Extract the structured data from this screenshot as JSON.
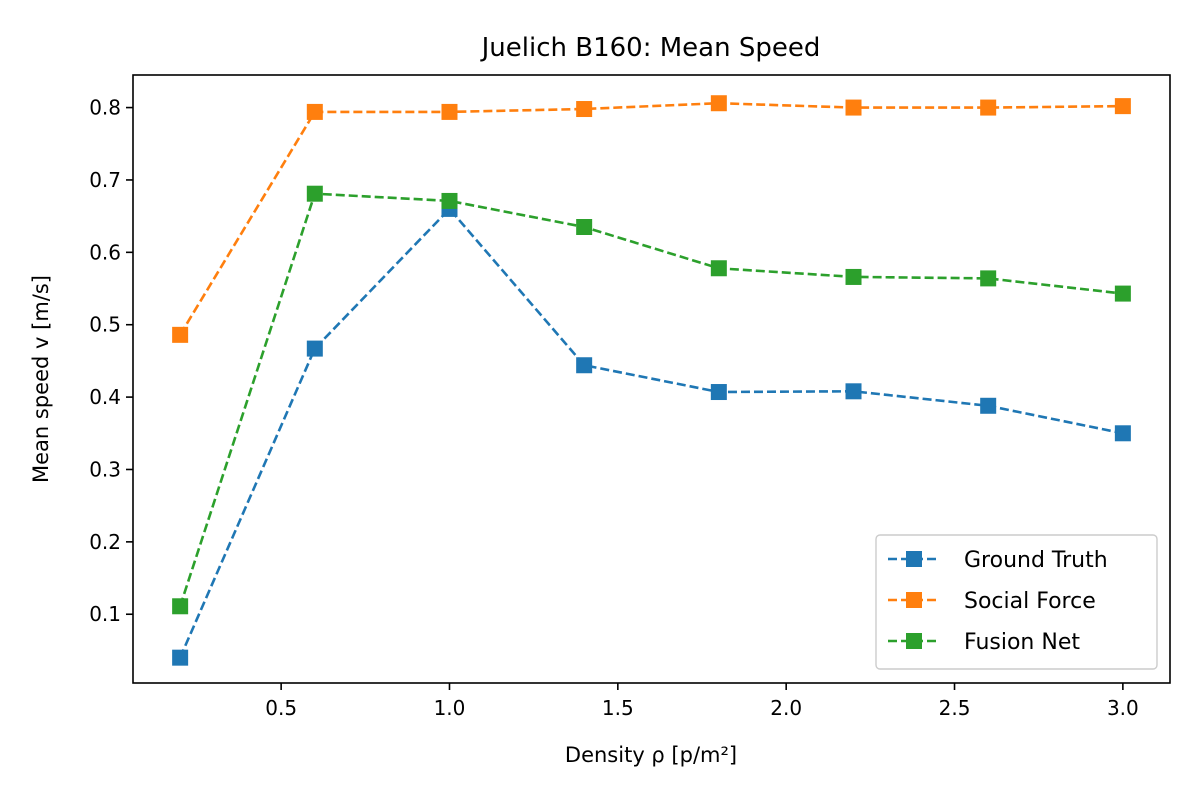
{
  "chart_data": {
    "type": "line",
    "title": "Juelich B160: Mean Speed",
    "xlabel": "Density ρ [p/m²]",
    "ylabel": "Mean speed v [m/s]",
    "x": [
      0.2,
      0.6,
      1.0,
      1.4,
      1.8,
      2.2,
      2.6,
      3.0
    ],
    "xlim": [
      0.06,
      3.14
    ],
    "ylim": [
      0.005,
      0.845
    ],
    "xticks": [
      0.5,
      1.0,
      1.5,
      2.0,
      2.5,
      3.0
    ],
    "xtick_labels": [
      "0.5",
      "1.0",
      "1.5",
      "2.0",
      "2.5",
      "3.0"
    ],
    "yticks": [
      0.1,
      0.2,
      0.3,
      0.4,
      0.5,
      0.6,
      0.7,
      0.8
    ],
    "ytick_labels": [
      "0.1",
      "0.2",
      "0.3",
      "0.4",
      "0.5",
      "0.6",
      "0.7",
      "0.8"
    ],
    "grid": false,
    "legend_position": "lower-right",
    "series": [
      {
        "name": "Ground Truth",
        "color": "#1f77b4",
        "marker": "square",
        "linestyle": "dashed",
        "values": [
          0.04,
          0.467,
          0.66,
          0.444,
          0.407,
          0.408,
          0.388,
          0.35
        ]
      },
      {
        "name": "Social Force",
        "color": "#ff7f0e",
        "marker": "square",
        "linestyle": "dashed",
        "values": [
          0.486,
          0.794,
          0.794,
          0.798,
          0.806,
          0.8,
          0.8,
          0.802
        ]
      },
      {
        "name": "Fusion Net",
        "color": "#2ca02c",
        "marker": "square",
        "linestyle": "dashed",
        "values": [
          0.111,
          0.681,
          0.671,
          0.635,
          0.578,
          0.566,
          0.564,
          0.543
        ]
      }
    ]
  }
}
